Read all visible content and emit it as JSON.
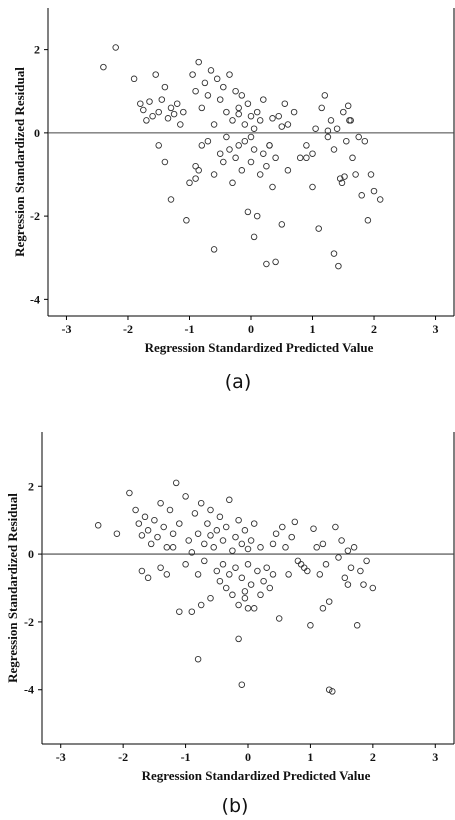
{
  "chart_data": [
    {
      "type": "scatter",
      "caption": "(a)",
      "xlabel": "Regression Standardized Predicted Value",
      "ylabel": "Regression Standardized Residual",
      "xlim": [
        -3.3,
        3.3
      ],
      "ylim": [
        -4.4,
        3.0
      ],
      "xticks": [
        -3,
        -2,
        -1,
        0,
        1,
        2,
        3
      ],
      "yticks": [
        -4,
        -2,
        0,
        2
      ],
      "reference_line_y": 0,
      "grid": false,
      "points": [
        [
          -2.4,
          1.58
        ],
        [
          -2.2,
          2.05
        ],
        [
          -1.9,
          1.3
        ],
        [
          -1.8,
          0.7
        ],
        [
          -1.75,
          0.55
        ],
        [
          -1.7,
          0.3
        ],
        [
          -1.65,
          0.75
        ],
        [
          -1.6,
          0.4
        ],
        [
          -1.55,
          1.4
        ],
        [
          -1.5,
          0.5
        ],
        [
          -1.45,
          0.8
        ],
        [
          -1.4,
          1.1
        ],
        [
          -1.35,
          0.35
        ],
        [
          -1.3,
          0.6
        ],
        [
          -1.25,
          0.45
        ],
        [
          -1.2,
          0.7
        ],
        [
          -1.15,
          0.2
        ],
        [
          -1.1,
          0.5
        ],
        [
          -1.5,
          -0.3
        ],
        [
          -1.4,
          -0.7
        ],
        [
          -1.3,
          -1.6
        ],
        [
          -1.05,
          -2.1
        ],
        [
          -1.0,
          -1.2
        ],
        [
          -0.9,
          -1.1
        ],
        [
          -0.95,
          1.4
        ],
        [
          -0.9,
          1.0
        ],
        [
          -0.85,
          1.7
        ],
        [
          -0.8,
          0.6
        ],
        [
          -0.75,
          1.2
        ],
        [
          -0.7,
          0.9
        ],
        [
          -0.65,
          1.5
        ],
        [
          -0.6,
          0.2
        ],
        [
          -0.55,
          1.3
        ],
        [
          -0.5,
          0.8
        ],
        [
          -0.45,
          1.1
        ],
        [
          -0.4,
          0.5
        ],
        [
          -0.35,
          1.4
        ],
        [
          -0.3,
          0.3
        ],
        [
          -0.25,
          1.0
        ],
        [
          -0.2,
          0.6
        ],
        [
          -0.15,
          0.9
        ],
        [
          -0.1,
          0.2
        ],
        [
          -0.05,
          0.7
        ],
        [
          0.0,
          0.4
        ],
        [
          0.05,
          0.1
        ],
        [
          0.1,
          0.5
        ],
        [
          0.15,
          0.3
        ],
        [
          0.2,
          0.8
        ],
        [
          -0.9,
          -0.8
        ],
        [
          -0.85,
          -0.9
        ],
        [
          -0.8,
          -0.3
        ],
        [
          -0.7,
          -0.2
        ],
        [
          -0.6,
          -1.0
        ],
        [
          -0.5,
          -0.5
        ],
        [
          -0.45,
          -0.7
        ],
        [
          -0.4,
          -0.1
        ],
        [
          -0.35,
          -0.4
        ],
        [
          -0.3,
          -1.2
        ],
        [
          -0.25,
          -0.6
        ],
        [
          -0.2,
          -0.3
        ],
        [
          -0.15,
          -0.9
        ],
        [
          -0.1,
          -0.2
        ],
        [
          -0.05,
          -1.9
        ],
        [
          0.0,
          -0.7
        ],
        [
          0.05,
          -0.4
        ],
        [
          0.1,
          -2.0
        ],
        [
          0.15,
          -1.0
        ],
        [
          0.2,
          -0.5
        ],
        [
          0.25,
          -0.8
        ],
        [
          0.3,
          -0.3
        ],
        [
          0.35,
          -1.3
        ],
        [
          0.4,
          -0.6
        ],
        [
          -0.6,
          -2.8
        ],
        [
          0.05,
          -2.5
        ],
        [
          0.25,
          -3.15
        ],
        [
          0.4,
          -3.1
        ],
        [
          0.5,
          -2.2
        ],
        [
          0.6,
          -0.9
        ],
        [
          0.45,
          0.4
        ],
        [
          0.55,
          0.7
        ],
        [
          0.6,
          0.2
        ],
        [
          0.7,
          0.5
        ],
        [
          0.8,
          -0.6
        ],
        [
          0.9,
          -0.3
        ],
        [
          1.0,
          -0.5
        ],
        [
          1.05,
          0.1
        ],
        [
          1.1,
          -2.3
        ],
        [
          1.15,
          0.6
        ],
        [
          1.2,
          0.9
        ],
        [
          1.25,
          -0.1
        ],
        [
          1.3,
          0.3
        ],
        [
          1.35,
          -0.4
        ],
        [
          1.4,
          0.1
        ],
        [
          1.45,
          -1.1
        ],
        [
          1.5,
          0.5
        ],
        [
          1.55,
          -0.2
        ],
        [
          1.6,
          0.3
        ],
        [
          1.65,
          -0.6
        ],
        [
          1.7,
          -1.0
        ],
        [
          1.75,
          -0.1
        ],
        [
          1.8,
          -1.5
        ],
        [
          1.85,
          -0.2
        ],
        [
          1.9,
          -2.1
        ],
        [
          1.95,
          -1.0
        ],
        [
          2.0,
          -1.4
        ],
        [
          2.1,
          -1.6
        ],
        [
          1.35,
          -2.9
        ],
        [
          1.42,
          -3.2
        ],
        [
          1.48,
          -1.2
        ],
        [
          1.52,
          -1.05
        ],
        [
          1.58,
          0.65
        ],
        [
          1.62,
          0.3
        ],
        [
          1.25,
          0.05
        ],
        [
          1.0,
          -1.3
        ],
        [
          0.9,
          -0.6
        ],
        [
          0.3,
          -0.3
        ],
        [
          0.5,
          0.15
        ],
        [
          0.35,
          0.35
        ],
        [
          -0.2,
          0.45
        ],
        [
          0.0,
          -0.1
        ]
      ]
    },
    {
      "type": "scatter",
      "caption": "(b)",
      "xlabel": "Regression Standardized Predicted Value",
      "ylabel": "Regression Standardized Residual",
      "xlim": [
        -3.3,
        3.3
      ],
      "ylim": [
        -5.6,
        3.6
      ],
      "xticks": [
        -3,
        -2,
        -1,
        0,
        1,
        2,
        3
      ],
      "yticks": [
        -4,
        -2,
        0,
        2
      ],
      "reference_line_y": 0,
      "grid": false,
      "points": [
        [
          -2.4,
          0.85
        ],
        [
          -2.1,
          0.6
        ],
        [
          -1.9,
          1.8
        ],
        [
          -1.8,
          1.3
        ],
        [
          -1.75,
          0.9
        ],
        [
          -1.7,
          0.55
        ],
        [
          -1.65,
          1.1
        ],
        [
          -1.6,
          0.7
        ],
        [
          -1.55,
          0.3
        ],
        [
          -1.5,
          1.0
        ],
        [
          -1.45,
          0.5
        ],
        [
          -1.4,
          1.5
        ],
        [
          -1.35,
          0.8
        ],
        [
          -1.3,
          0.2
        ],
        [
          -1.25,
          1.3
        ],
        [
          -1.2,
          0.6
        ],
        [
          -1.15,
          2.1
        ],
        [
          -1.1,
          0.9
        ],
        [
          -1.0,
          1.7
        ],
        [
          -0.95,
          0.4
        ],
        [
          -0.9,
          0.05
        ],
        [
          -0.85,
          1.2
        ],
        [
          -0.8,
          0.6
        ],
        [
          -0.75,
          1.5
        ],
        [
          -0.7,
          0.3
        ],
        [
          -0.65,
          0.9
        ],
        [
          -0.6,
          1.3
        ],
        [
          -0.55,
          0.2
        ],
        [
          -0.5,
          0.7
        ],
        [
          -0.45,
          1.1
        ],
        [
          -0.4,
          0.4
        ],
        [
          -0.35,
          0.8
        ],
        [
          -0.3,
          1.6
        ],
        [
          -0.25,
          0.1
        ],
        [
          -0.2,
          0.5
        ],
        [
          -0.15,
          1.0
        ],
        [
          -0.1,
          0.3
        ],
        [
          -0.05,
          0.7
        ],
        [
          0.0,
          0.15
        ],
        [
          0.05,
          0.4
        ],
        [
          0.1,
          0.9
        ],
        [
          0.2,
          0.2
        ],
        [
          -1.7,
          -0.5
        ],
        [
          -1.6,
          -0.7
        ],
        [
          -1.4,
          -0.4
        ],
        [
          -1.3,
          -0.6
        ],
        [
          -1.1,
          -1.7
        ],
        [
          -1.0,
          -0.3
        ],
        [
          -0.9,
          -1.7
        ],
        [
          -0.8,
          -0.6
        ],
        [
          -0.75,
          -1.5
        ],
        [
          -0.7,
          -0.2
        ],
        [
          -0.6,
          -1.3
        ],
        [
          -0.5,
          -0.5
        ],
        [
          -0.45,
          -0.8
        ],
        [
          -0.4,
          -0.3
        ],
        [
          -0.35,
          -1.0
        ],
        [
          -0.3,
          -0.6
        ],
        [
          -0.25,
          -1.2
        ],
        [
          -0.2,
          -0.4
        ],
        [
          -0.15,
          -1.5
        ],
        [
          -0.1,
          -0.7
        ],
        [
          -0.05,
          -1.1
        ],
        [
          0.0,
          -0.3
        ],
        [
          0.05,
          -0.9
        ],
        [
          0.1,
          -1.6
        ],
        [
          0.15,
          -0.5
        ],
        [
          0.2,
          -1.2
        ],
        [
          0.25,
          -0.8
        ],
        [
          0.3,
          -0.4
        ],
        [
          0.35,
          -1.0
        ],
        [
          0.4,
          -0.6
        ],
        [
          -0.8,
          -3.1
        ],
        [
          -0.15,
          -2.5
        ],
        [
          -0.1,
          -3.85
        ],
        [
          0.0,
          -1.6
        ],
        [
          -0.05,
          -1.3
        ],
        [
          0.5,
          -1.9
        ],
        [
          0.45,
          0.6
        ],
        [
          0.55,
          0.8
        ],
        [
          0.6,
          0.2
        ],
        [
          0.7,
          0.5
        ],
        [
          0.75,
          0.95
        ],
        [
          0.8,
          -0.2
        ],
        [
          0.9,
          -0.4
        ],
        [
          1.0,
          -2.1
        ],
        [
          1.05,
          0.75
        ],
        [
          1.1,
          0.2
        ],
        [
          1.15,
          -0.6
        ],
        [
          1.2,
          0.3
        ],
        [
          1.25,
          -0.3
        ],
        [
          1.3,
          -4.0
        ],
        [
          1.35,
          -4.05
        ],
        [
          1.4,
          0.8
        ],
        [
          1.45,
          -0.1
        ],
        [
          1.5,
          0.4
        ],
        [
          1.55,
          -0.7
        ],
        [
          1.6,
          0.1
        ],
        [
          1.65,
          -0.4
        ],
        [
          1.7,
          0.2
        ],
        [
          1.75,
          -2.1
        ],
        [
          1.8,
          -0.5
        ],
        [
          1.85,
          -0.9
        ],
        [
          1.9,
          -0.2
        ],
        [
          2.0,
          -1.0
        ],
        [
          1.3,
          -1.4
        ],
        [
          1.2,
          -1.6
        ],
        [
          1.6,
          -0.9
        ],
        [
          0.95,
          -0.5
        ],
        [
          0.85,
          -0.3
        ],
        [
          0.65,
          -0.6
        ],
        [
          0.4,
          0.3
        ],
        [
          -0.6,
          0.55
        ],
        [
          -1.2,
          0.2
        ]
      ]
    }
  ]
}
